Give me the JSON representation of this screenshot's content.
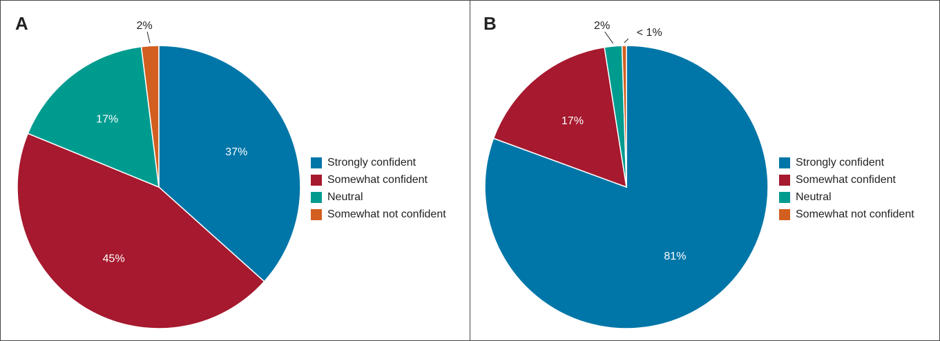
{
  "chart_data": [
    {
      "type": "pie",
      "title": "A",
      "categories": [
        "Strongly confident",
        "Somewhat confident",
        "Neutral",
        "Somewhat not confident"
      ],
      "values": [
        37,
        45,
        17,
        2
      ],
      "value_labels": [
        "37%",
        "45%",
        "17%",
        "2%"
      ],
      "colors": [
        "#0076a8",
        "#a6192e",
        "#009b8f",
        "#d25f20"
      ]
    },
    {
      "type": "pie",
      "title": "B",
      "categories": [
        "Strongly confident",
        "Somewhat confident",
        "Neutral",
        "Somewhat not confident"
      ],
      "values": [
        81,
        17,
        2,
        0.5
      ],
      "value_labels": [
        "81%",
        "17%",
        "2%",
        "< 1%"
      ],
      "colors": [
        "#0076a8",
        "#a6192e",
        "#009b8f",
        "#d25f20"
      ]
    }
  ]
}
